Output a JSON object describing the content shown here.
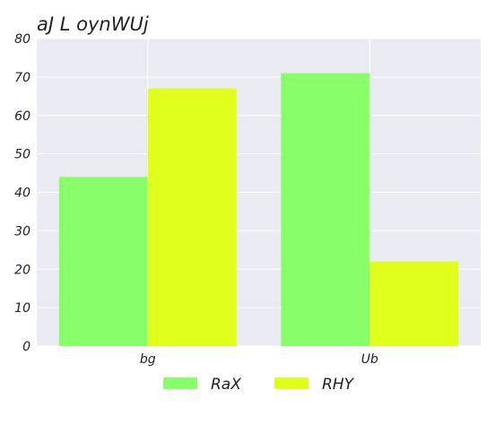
{
  "chart_data": {
    "type": "bar",
    "title": "aJ L oynWUj",
    "xlabel": "",
    "ylabel": "",
    "categories": [
      "bg",
      "Ub"
    ],
    "series": [
      {
        "name": "RaX",
        "values": [
          44,
          71
        ],
        "color": "#88ff6a"
      },
      {
        "name": "RHY",
        "values": [
          67,
          22
        ],
        "color": "#e0ff1a"
      }
    ],
    "ylim": [
      0,
      80
    ],
    "yticks": [
      0,
      10,
      20,
      30,
      40,
      50,
      60,
      70,
      80
    ],
    "grid": true,
    "legend_position": "bottom-center",
    "background": "#eaeaf2"
  }
}
